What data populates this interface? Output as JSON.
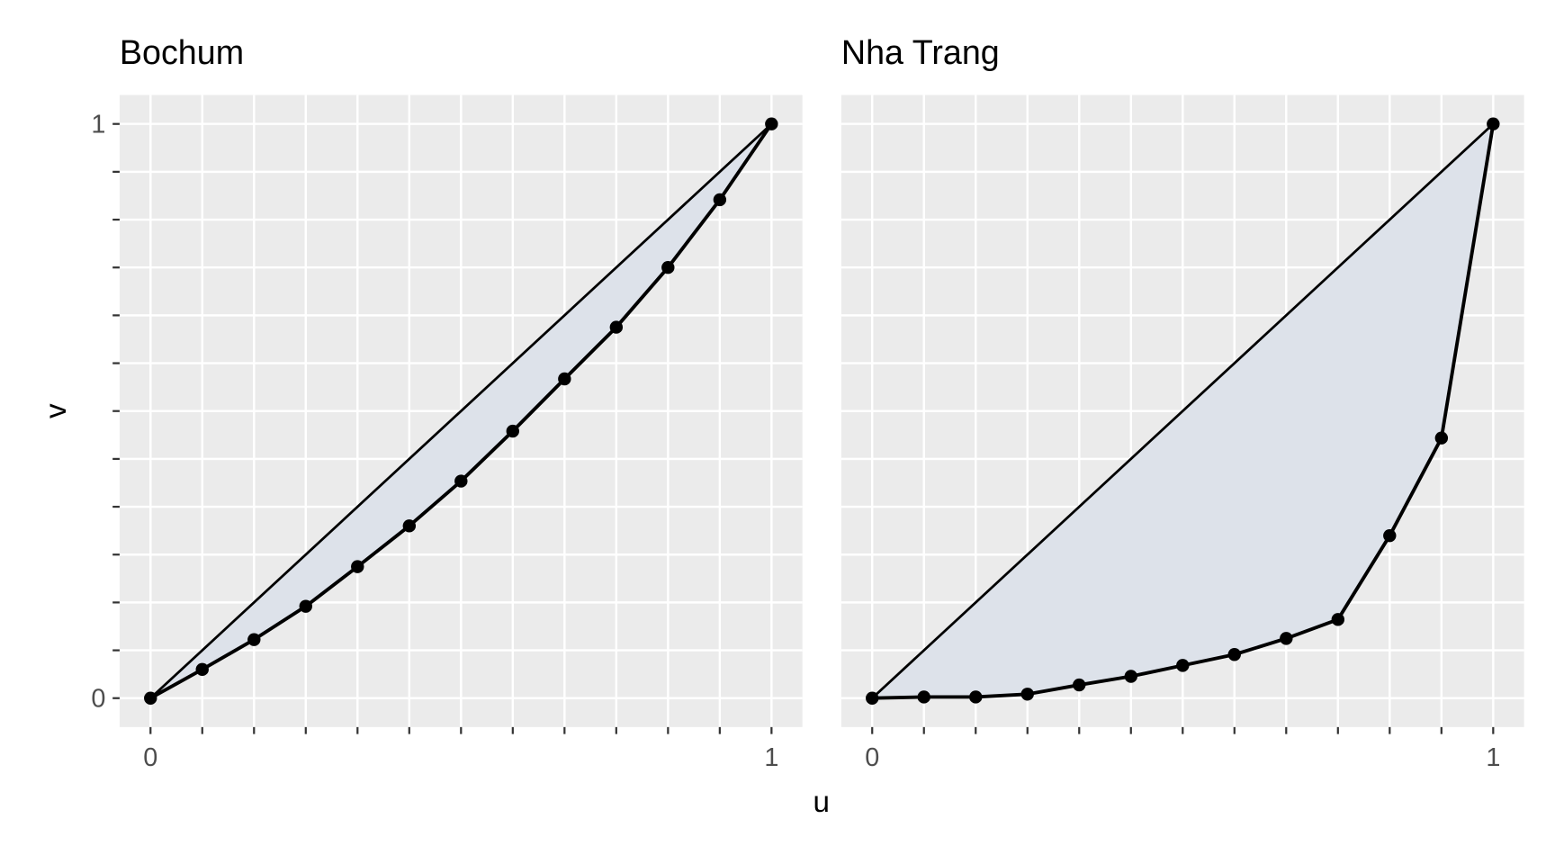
{
  "chart_data": [
    {
      "type": "line",
      "title": "Bochum",
      "xlabel": "u",
      "ylabel": "v",
      "xlim": [
        0,
        1
      ],
      "ylim": [
        0,
        1
      ],
      "x_ticks": [
        "0",
        "1"
      ],
      "y_ticks": [
        "0",
        "1"
      ],
      "grid": true,
      "x": [
        0,
        0.0833,
        0.1667,
        0.25,
        0.3333,
        0.4167,
        0.5,
        0.5833,
        0.6667,
        0.75,
        0.8333,
        0.9167,
        1
      ],
      "values": [
        0,
        0.05,
        0.102,
        0.16,
        0.229,
        0.3,
        0.378,
        0.465,
        0.556,
        0.646,
        0.75,
        0.868,
        1
      ],
      "reference_line": "diagonal",
      "fill_between": true
    },
    {
      "type": "line",
      "title": "Nha Trang",
      "xlim": [
        0,
        1
      ],
      "ylim": [
        0,
        1
      ],
      "x_ticks": [
        "0",
        "1"
      ],
      "grid": true,
      "x": [
        0,
        0.0833,
        0.1667,
        0.25,
        0.3333,
        0.4167,
        0.5,
        0.5833,
        0.6667,
        0.75,
        0.8333,
        0.9167,
        1
      ],
      "values": [
        0,
        0.002,
        0.002,
        0.007,
        0.023,
        0.038,
        0.057,
        0.076,
        0.104,
        0.137,
        0.283,
        0.453,
        1
      ],
      "reference_line": "diagonal",
      "fill_between": true
    }
  ],
  "colors": {
    "panel_bg": "#ebebeb",
    "grid": "#ffffff",
    "fill": "#dde2ea",
    "line": "#000000",
    "tick_text": "#4d4d4d"
  }
}
